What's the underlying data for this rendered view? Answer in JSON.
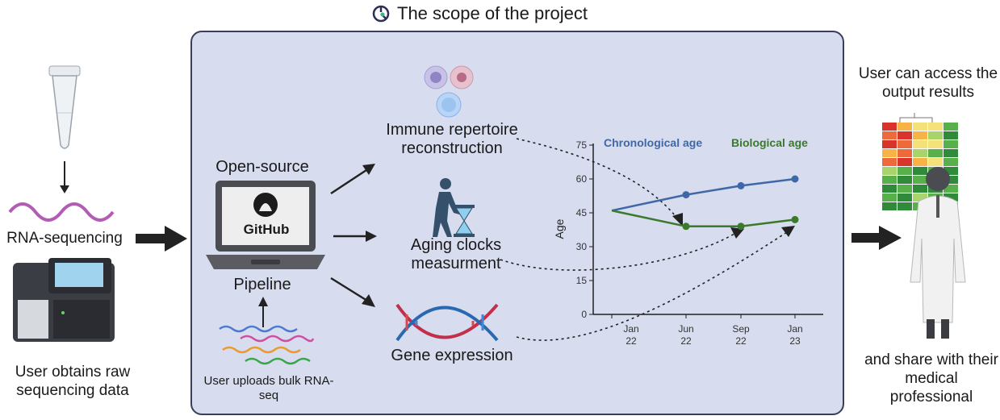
{
  "title": "The scope of the project",
  "left": {
    "rna_label": "RNA-sequencing",
    "caption": "User obtains raw sequencing data"
  },
  "pipeline": {
    "top_label": "Open-source",
    "logo_text": "GitHub",
    "bottom_label": "Pipeline",
    "upload_caption": "User uploads bulk RNA-seq"
  },
  "outputs": {
    "immune": "Immune repertoire reconstruction",
    "aging": "Aging clocks measurment",
    "gene": "Gene expression"
  },
  "right": {
    "access_caption": "User can access the output results",
    "share_caption": "and share with their medical professional"
  },
  "colors": {
    "panel": "#d7dcef",
    "chronological": "#3f68a8",
    "biological": "#3a7a2a",
    "arrow": "#222222"
  },
  "chart_data": {
    "type": "line",
    "ylabel": "Age",
    "yticks": [
      0,
      15,
      30,
      45,
      60,
      75
    ],
    "ylim": [
      0,
      75
    ],
    "categories": [
      "Jan 22",
      "Jun 22",
      "Sep 22",
      "Jan 23"
    ],
    "series": [
      {
        "name": "Chronological age",
        "color": "#3f68a8",
        "values": [
          46,
          53,
          57,
          60
        ]
      },
      {
        "name": "Biological age",
        "color": "#3a7a2a",
        "values": [
          46,
          39,
          39,
          42
        ]
      }
    ]
  }
}
